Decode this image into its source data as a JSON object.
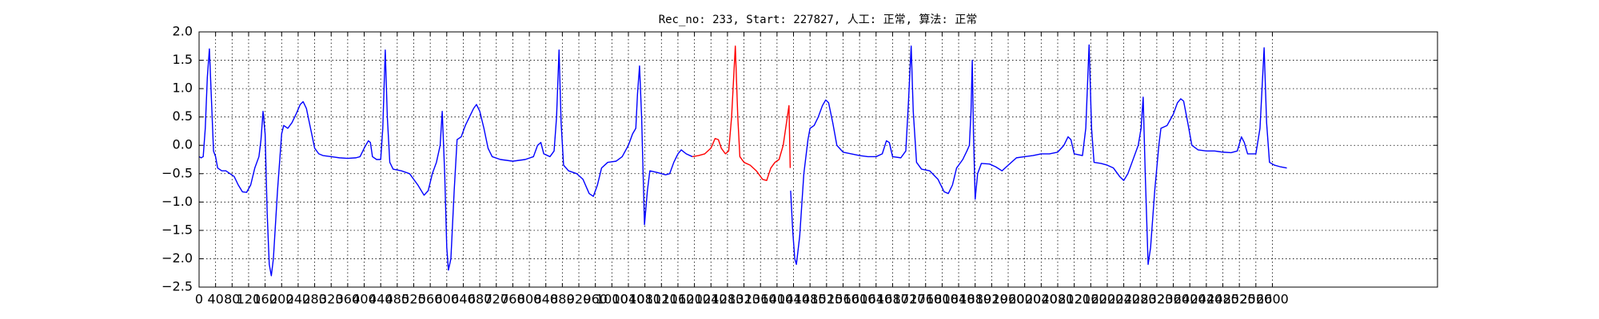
{
  "chart_data": {
    "type": "line",
    "title": "Rec_no: 233, Start: 227827, 人工: 正常, 算法: 正常",
    "xlim": [
      0,
      3000
    ],
    "ylim": [
      -2.5,
      2.0
    ],
    "grid": true,
    "xticks": [
      0,
      40,
      80,
      120,
      160,
      200,
      240,
      280,
      320,
      360,
      400,
      440,
      480,
      520,
      560,
      600,
      640,
      680,
      720,
      760,
      800,
      840,
      880,
      920,
      960,
      1000,
      1040,
      1080,
      1120,
      1160,
      1200,
      1240,
      1280,
      1320,
      1360,
      1400,
      1440,
      1480,
      1520,
      1560,
      1600,
      1640,
      1680,
      1720,
      1760,
      1800,
      1840,
      1880,
      1920,
      1960,
      2000,
      2040,
      2080,
      2120,
      2160,
      2200,
      2240,
      2280,
      2320,
      2360,
      2400,
      2440,
      2480,
      2520,
      2560,
      2600
    ],
    "yticks": [
      {
        "value": 2.0,
        "label": "2.0"
      },
      {
        "value": 1.5,
        "label": "1.5"
      },
      {
        "value": 1.0,
        "label": "1.0"
      },
      {
        "value": 0.5,
        "label": "0.5"
      },
      {
        "value": 0.0,
        "label": "0.0"
      },
      {
        "value": -0.5,
        "label": "−0.5"
      },
      {
        "value": -1.0,
        "label": "−1.0"
      },
      {
        "value": -1.5,
        "label": "−1.5"
      },
      {
        "value": -2.0,
        "label": "−2.0"
      },
      {
        "value": -2.5,
        "label": "−2.5"
      }
    ],
    "x": [
      0,
      5,
      10,
      15,
      20,
      25,
      30,
      35,
      40,
      45,
      55,
      65,
      75,
      85,
      95,
      105,
      115,
      125,
      135,
      145,
      150,
      155,
      160,
      165,
      170,
      175,
      180,
      190,
      200,
      205,
      215,
      225,
      235,
      245,
      252,
      260,
      270,
      280,
      290,
      300,
      320,
      340,
      360,
      380,
      390,
      400,
      410,
      415,
      420,
      430,
      440,
      445,
      451,
      456,
      462,
      470,
      490,
      510,
      530,
      545,
      555,
      565,
      575,
      584,
      589,
      595,
      600,
      604,
      610,
      618,
      625,
      635,
      645,
      655,
      665,
      672,
      680,
      690,
      700,
      710,
      730,
      760,
      790,
      810,
      820,
      828,
      835,
      850,
      860,
      866,
      872,
      877,
      883,
      895,
      915,
      930,
      945,
      955,
      965,
      975,
      990,
      1010,
      1025,
      1040,
      1050,
      1058,
      1062,
      1067,
      1072,
      1079,
      1086,
      1092,
      1110,
      1130,
      1140,
      1150,
      1160,
      1168,
      1180,
      1195,
      1210,
      1225,
      1240,
      1250,
      1258,
      1265,
      1275,
      1283,
      1290,
      1299,
      1305,
      1310,
      1320,
      1335,
      1350,
      1365,
      1375,
      1385,
      1395,
      1405,
      1415,
      1425,
      1429,
      1432,
      1433,
      1438,
      1443,
      1447,
      1455,
      1465,
      1475,
      1480,
      1490,
      1500,
      1510,
      1518,
      1525,
      1535,
      1545,
      1560,
      1580,
      1600,
      1620,
      1640,
      1655,
      1665,
      1672,
      1680,
      1700,
      1712,
      1718,
      1725,
      1730,
      1738,
      1750,
      1770,
      1790,
      1805,
      1815,
      1825,
      1835,
      1850,
      1860,
      1866,
      1870,
      1873,
      1876,
      1880,
      1886,
      1895,
      1915,
      1930,
      1945,
      1960,
      1980,
      2000,
      2020,
      2040,
      2060,
      2080,
      2095,
      2105,
      2112,
      2120,
      2140,
      2148,
      2156,
      2162,
      2168,
      2185,
      2200,
      2215,
      2230,
      2240,
      2250,
      2265,
      2275,
      2282,
      2287,
      2292,
      2299,
      2305,
      2315,
      2325,
      2330,
      2345,
      2360,
      2370,
      2378,
      2385,
      2395,
      2405,
      2420,
      2440,
      2460,
      2480,
      2500,
      2515,
      2525,
      2532,
      2540,
      2560,
      2570,
      2580,
      2586,
      2593,
      2605,
      2620,
      2635
    ],
    "series": [
      {
        "color": "#0000ff",
        "values": [
          -0.2,
          -0.22,
          -0.2,
          0.3,
          1.2,
          1.7,
          0.8,
          -0.1,
          -0.2,
          -0.4,
          -0.45,
          -0.45,
          -0.5,
          -0.55,
          -0.7,
          -0.82,
          -0.83,
          -0.7,
          -0.4,
          -0.2,
          0.1,
          0.6,
          0.2,
          -1.2,
          -2.1,
          -2.3,
          -2.0,
          -0.8,
          0.2,
          0.35,
          0.3,
          0.4,
          0.55,
          0.72,
          0.77,
          0.65,
          0.3,
          -0.05,
          -0.15,
          -0.18,
          -0.2,
          -0.22,
          -0.23,
          -0.22,
          -0.2,
          -0.05,
          0.08,
          0.05,
          -0.2,
          -0.25,
          -0.25,
          0.3,
          1.68,
          0.5,
          -0.3,
          -0.42,
          -0.45,
          -0.5,
          -0.7,
          -0.88,
          -0.8,
          -0.5,
          -0.3,
          0.0,
          0.6,
          -0.5,
          -1.8,
          -2.2,
          -2.0,
          -0.8,
          0.1,
          0.15,
          0.35,
          0.5,
          0.65,
          0.72,
          0.6,
          0.3,
          -0.05,
          -0.2,
          -0.25,
          -0.28,
          -0.25,
          -0.2,
          0.0,
          0.05,
          -0.15,
          -0.2,
          -0.1,
          0.5,
          1.68,
          0.4,
          -0.35,
          -0.45,
          -0.5,
          -0.6,
          -0.85,
          -0.9,
          -0.7,
          -0.4,
          -0.3,
          -0.28,
          -0.2,
          0.0,
          0.2,
          0.3,
          0.9,
          1.4,
          0.5,
          -1.4,
          -0.8,
          -0.45,
          -0.48,
          -0.52,
          -0.5,
          -0.3,
          -0.15,
          -0.08,
          -0.15,
          -0.2,
          null,
          null,
          null,
          null,
          null,
          null,
          null,
          null,
          null,
          null,
          null,
          null,
          null,
          null,
          null,
          null,
          null,
          null,
          null,
          null,
          null,
          null,
          null,
          null,
          -0.8,
          -1.5,
          -2.0,
          -2.1,
          -1.6,
          -0.5,
          0.1,
          0.3,
          0.35,
          0.5,
          0.7,
          0.8,
          0.75,
          0.4,
          0.0,
          -0.12,
          -0.15,
          -0.18,
          -0.2,
          -0.2,
          -0.15,
          0.08,
          0.05,
          -0.2,
          -0.22,
          -0.1,
          0.7,
          1.75,
          0.6,
          -0.3,
          -0.42,
          -0.45,
          -0.6,
          -0.82,
          -0.85,
          -0.7,
          -0.4,
          -0.25,
          -0.1,
          0.0,
          0.6,
          1.5,
          0.2,
          -0.95,
          -0.5,
          -0.32,
          -0.33,
          -0.38,
          -0.45,
          -0.35,
          -0.22,
          -0.2,
          -0.18,
          -0.15,
          -0.15,
          -0.12,
          0.0,
          0.15,
          0.1,
          -0.15,
          -0.18,
          0.3,
          1.77,
          0.3,
          -0.3,
          -0.32,
          -0.35,
          -0.4,
          -0.55,
          -0.62,
          -0.5,
          -0.2,
          0.0,
          0.3,
          0.85,
          -0.5,
          -2.1,
          -1.8,
          -0.8,
          0.0,
          0.3,
          0.35,
          0.55,
          0.75,
          0.82,
          0.78,
          0.4,
          0.0,
          -0.08,
          -0.1,
          -0.1,
          -0.12,
          -0.13,
          -0.1,
          0.15,
          0.05,
          -0.15,
          -0.15,
          0.3,
          1.72,
          0.4,
          -0.3,
          -0.35,
          -0.38,
          -0.4
        ]
      },
      {
        "color": "#ff0000",
        "values": [
          null,
          null,
          null,
          null,
          null,
          null,
          null,
          null,
          null,
          null,
          null,
          null,
          null,
          null,
          null,
          null,
          null,
          null,
          null,
          null,
          null,
          null,
          null,
          null,
          null,
          null,
          null,
          null,
          null,
          null,
          null,
          null,
          null,
          null,
          null,
          null,
          null,
          null,
          null,
          null,
          null,
          null,
          null,
          null,
          null,
          null,
          null,
          null,
          null,
          null,
          null,
          null,
          null,
          null,
          null,
          null,
          null,
          null,
          null,
          null,
          null,
          null,
          null,
          null,
          null,
          null,
          null,
          null,
          null,
          null,
          null,
          null,
          null,
          null,
          null,
          null,
          null,
          null,
          null,
          null,
          null,
          null,
          null,
          null,
          null,
          null,
          null,
          null,
          null,
          null,
          null,
          null,
          null,
          null,
          null,
          null,
          null,
          null,
          null,
          null,
          null,
          null,
          null,
          null,
          null,
          null,
          null,
          null,
          null,
          null,
          null,
          null,
          null,
          null,
          null,
          null,
          null,
          null,
          null,
          -0.2,
          -0.18,
          -0.15,
          -0.05,
          0.12,
          0.1,
          -0.05,
          -0.15,
          -0.1,
          0.5,
          1.75,
          0.5,
          -0.2,
          -0.3,
          -0.35,
          -0.45,
          -0.6,
          -0.62,
          -0.4,
          -0.3,
          -0.25,
          0.0,
          0.5,
          0.7,
          -0.4,
          null,
          null,
          null,
          null,
          null,
          null,
          null,
          null,
          null,
          null,
          null,
          null,
          null,
          null,
          null,
          null,
          null,
          null,
          null,
          null,
          null,
          null,
          null,
          null,
          null,
          null,
          null,
          null,
          null,
          null,
          null,
          null,
          null,
          null,
          null,
          null,
          null,
          null,
          null,
          null,
          null,
          null,
          null,
          null,
          null,
          null,
          null,
          null,
          null,
          null,
          null,
          null,
          null,
          null,
          null,
          null,
          null,
          null,
          null,
          null,
          null,
          null,
          null,
          null,
          null,
          null,
          null,
          null,
          null,
          null,
          null,
          null,
          null,
          null,
          null,
          null,
          null,
          null,
          null,
          null,
          null,
          null,
          null,
          null,
          null,
          null,
          null,
          null,
          null,
          null,
          null,
          null,
          null,
          null,
          null,
          null,
          null,
          null,
          null,
          null,
          null,
          null,
          null,
          null,
          null
        ]
      }
    ]
  }
}
